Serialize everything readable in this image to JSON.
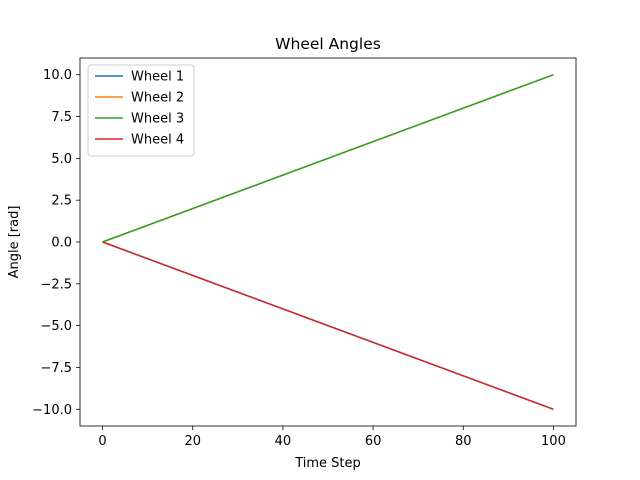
{
  "chart_data": {
    "type": "line",
    "title": "Wheel Angles",
    "xlabel": "Time Step",
    "ylabel": "Angle [rad]",
    "xlim": [
      -5,
      105
    ],
    "ylim": [
      -11,
      11
    ],
    "x_ticks": [
      0,
      20,
      40,
      60,
      80,
      100
    ],
    "x_tick_labels": [
      "0",
      "20",
      "40",
      "60",
      "80",
      "100"
    ],
    "y_ticks": [
      -10,
      -7.5,
      -5,
      -2.5,
      0,
      2.5,
      5,
      7.5,
      10
    ],
    "y_tick_labels": [
      "−10.0",
      "−7.5",
      "−5.0",
      "−2.5",
      "0.0",
      "2.5",
      "5.0",
      "7.5",
      "10.0"
    ],
    "grid": false,
    "legend_position": "upper-left",
    "series": [
      {
        "name": "Wheel 1",
        "color": "#1f77b4",
        "x": [
          0,
          100
        ],
        "y": [
          0,
          -10
        ]
      },
      {
        "name": "Wheel 2",
        "color": "#ff7f0e",
        "x": [
          0,
          100
        ],
        "y": [
          0,
          10
        ]
      },
      {
        "name": "Wheel 3",
        "color": "#2ca02c",
        "x": [
          0,
          100
        ],
        "y": [
          0,
          10
        ]
      },
      {
        "name": "Wheel 4",
        "color": "#d62728",
        "x": [
          0,
          100
        ],
        "y": [
          0,
          -10
        ]
      }
    ]
  }
}
